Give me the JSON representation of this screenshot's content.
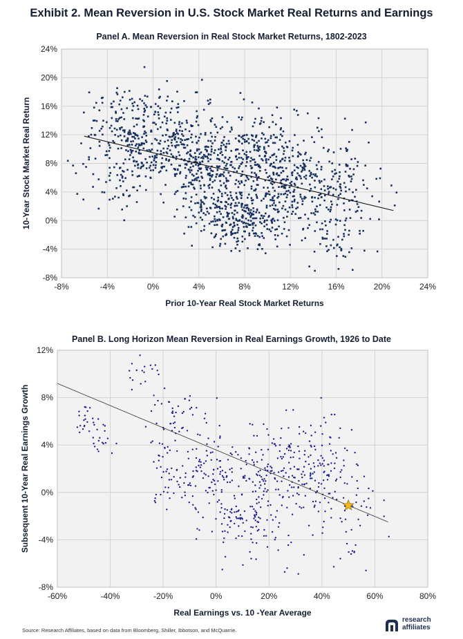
{
  "exhibit_title": "Exhibit 2. Mean Reversion in U.S. Stock Market Real Returns and Earnings",
  "source_text": "Source: Research Affiliates, based on data from Bloomberg, Shiller, Ibbotson, and McQuarrie.",
  "logo": {
    "line1": "research",
    "line2": "affiliates",
    "mark_icon": "research-affiliates-logo-icon"
  },
  "colors": {
    "panelA_points": "#17305e",
    "panelB_points": "#1d1d8a",
    "star": "#f5b818",
    "plot_bg": "#f2f2f2",
    "grid": "#d2d2d2"
  },
  "chart_data": [
    {
      "id": "panelA",
      "type": "scatter",
      "title": "Panel A. Mean Reversion in Real Stock Market Returns, 1802-2023",
      "xlabel": "Prior 10-Year Real Stock Market Returns",
      "ylabel": "10-Year Stock Market Real Return",
      "xlim": [
        -8,
        24
      ],
      "ylim": [
        -8,
        24
      ],
      "xticks": [
        -8,
        -4,
        0,
        4,
        8,
        12,
        16,
        20,
        24
      ],
      "yticks": [
        -8,
        -4,
        0,
        4,
        8,
        12,
        16,
        20,
        24
      ],
      "xtick_labels": [
        "-8%",
        "-4%",
        "0%",
        "4%",
        "8%",
        "12%",
        "16%",
        "20%",
        "24%"
      ],
      "ytick_labels": [
        "-8%",
        "-4%",
        "0%",
        "4%",
        "8%",
        "12%",
        "16%",
        "20%",
        "24%"
      ],
      "grid": true,
      "trendline": {
        "x": [
          -6,
          21
        ],
        "y": [
          11.8,
          1.4
        ]
      },
      "clusters": [
        {
          "cx": -2.5,
          "cy": 12,
          "sx": 1.8,
          "sy": 3.2,
          "n": 170
        },
        {
          "cx": 1,
          "cy": 10,
          "sx": 2.2,
          "sy": 2.5,
          "n": 170
        },
        {
          "cx": 4.5,
          "cy": 7.5,
          "sx": 1.8,
          "sy": 2.5,
          "n": 210
        },
        {
          "cx": 6,
          "cy": 1,
          "sx": 1.8,
          "sy": 2.2,
          "n": 150
        },
        {
          "cx": 8.5,
          "cy": 0,
          "sx": 1.8,
          "sy": 2.0,
          "n": 150
        },
        {
          "cx": 9,
          "cy": 10,
          "sx": 2.0,
          "sy": 3.2,
          "n": 190
        },
        {
          "cx": 11,
          "cy": 5,
          "sx": 2.0,
          "sy": 3.0,
          "n": 210
        },
        {
          "cx": 14.5,
          "cy": 4,
          "sx": 2.0,
          "sy": 4.0,
          "n": 160
        },
        {
          "cx": 17.5,
          "cy": 4,
          "sx": 1.8,
          "sy": 3.2,
          "n": 60
        },
        {
          "cx": 1.5,
          "cy": 15,
          "sx": 2.5,
          "sy": 2.5,
          "n": 70
        },
        {
          "cx": 15.5,
          "cy": -3,
          "sx": 0.8,
          "sy": 1.2,
          "n": 25
        },
        {
          "cx": -3,
          "cy": 5,
          "sx": 2.0,
          "sy": 2.0,
          "n": 40
        }
      ]
    },
    {
      "id": "panelB",
      "type": "scatter",
      "title": "Panel B. Long Horizon Mean Reversion in Real Earnings Growth, 1926 to Date",
      "xlabel": "Real Earnings vs. 10 -Year Average",
      "ylabel": "Subsequent 10-Year Real Earnings Growth",
      "xlim": [
        -60,
        80
      ],
      "ylim": [
        -8,
        12
      ],
      "xticks": [
        -60,
        -40,
        -20,
        0,
        20,
        40,
        60,
        80
      ],
      "yticks": [
        -8,
        -4,
        0,
        4,
        8,
        12
      ],
      "xtick_labels": [
        "-60%",
        "-40%",
        "-20%",
        "0%",
        "20%",
        "40%",
        "60%",
        "80%"
      ],
      "ytick_labels": [
        "-8%",
        "-4%",
        "0%",
        "4%",
        "8%",
        "12%"
      ],
      "grid": true,
      "trendline": {
        "x": [
          -60,
          65
        ],
        "y": [
          9.2,
          -2.5
        ]
      },
      "highlight_point": {
        "x": 50,
        "y": -1.1,
        "marker": "star"
      },
      "clusters": [
        {
          "cx": -50,
          "cy": 6.5,
          "sx": 2,
          "sy": 0.6,
          "n": 20
        },
        {
          "cx": -42,
          "cy": 4.5,
          "sx": 3,
          "sy": 0.8,
          "n": 18
        },
        {
          "cx": -28,
          "cy": 10,
          "sx": 3,
          "sy": 1.0,
          "n": 18
        },
        {
          "cx": -17,
          "cy": 6,
          "sx": 5,
          "sy": 1.5,
          "n": 40
        },
        {
          "cx": -20,
          "cy": 1,
          "sx": 3,
          "sy": 1.5,
          "n": 25
        },
        {
          "cx": -5,
          "cy": 2,
          "sx": 7,
          "sy": 2.2,
          "n": 110
        },
        {
          "cx": 10,
          "cy": 0,
          "sx": 8,
          "sy": 2.5,
          "n": 110
        },
        {
          "cx": 25,
          "cy": 2,
          "sx": 7,
          "sy": 2.2,
          "n": 130
        },
        {
          "cx": 40,
          "cy": 2,
          "sx": 6,
          "sy": 2.5,
          "n": 100
        },
        {
          "cx": 52,
          "cy": -2,
          "sx": 6,
          "sy": 2.5,
          "n": 45
        },
        {
          "cx": 8,
          "cy": -2.5,
          "sx": 5,
          "sy": 1.0,
          "n": 40
        },
        {
          "cx": 28,
          "cy": -4,
          "sx": 5,
          "sy": 1.5,
          "n": 15
        }
      ]
    }
  ]
}
